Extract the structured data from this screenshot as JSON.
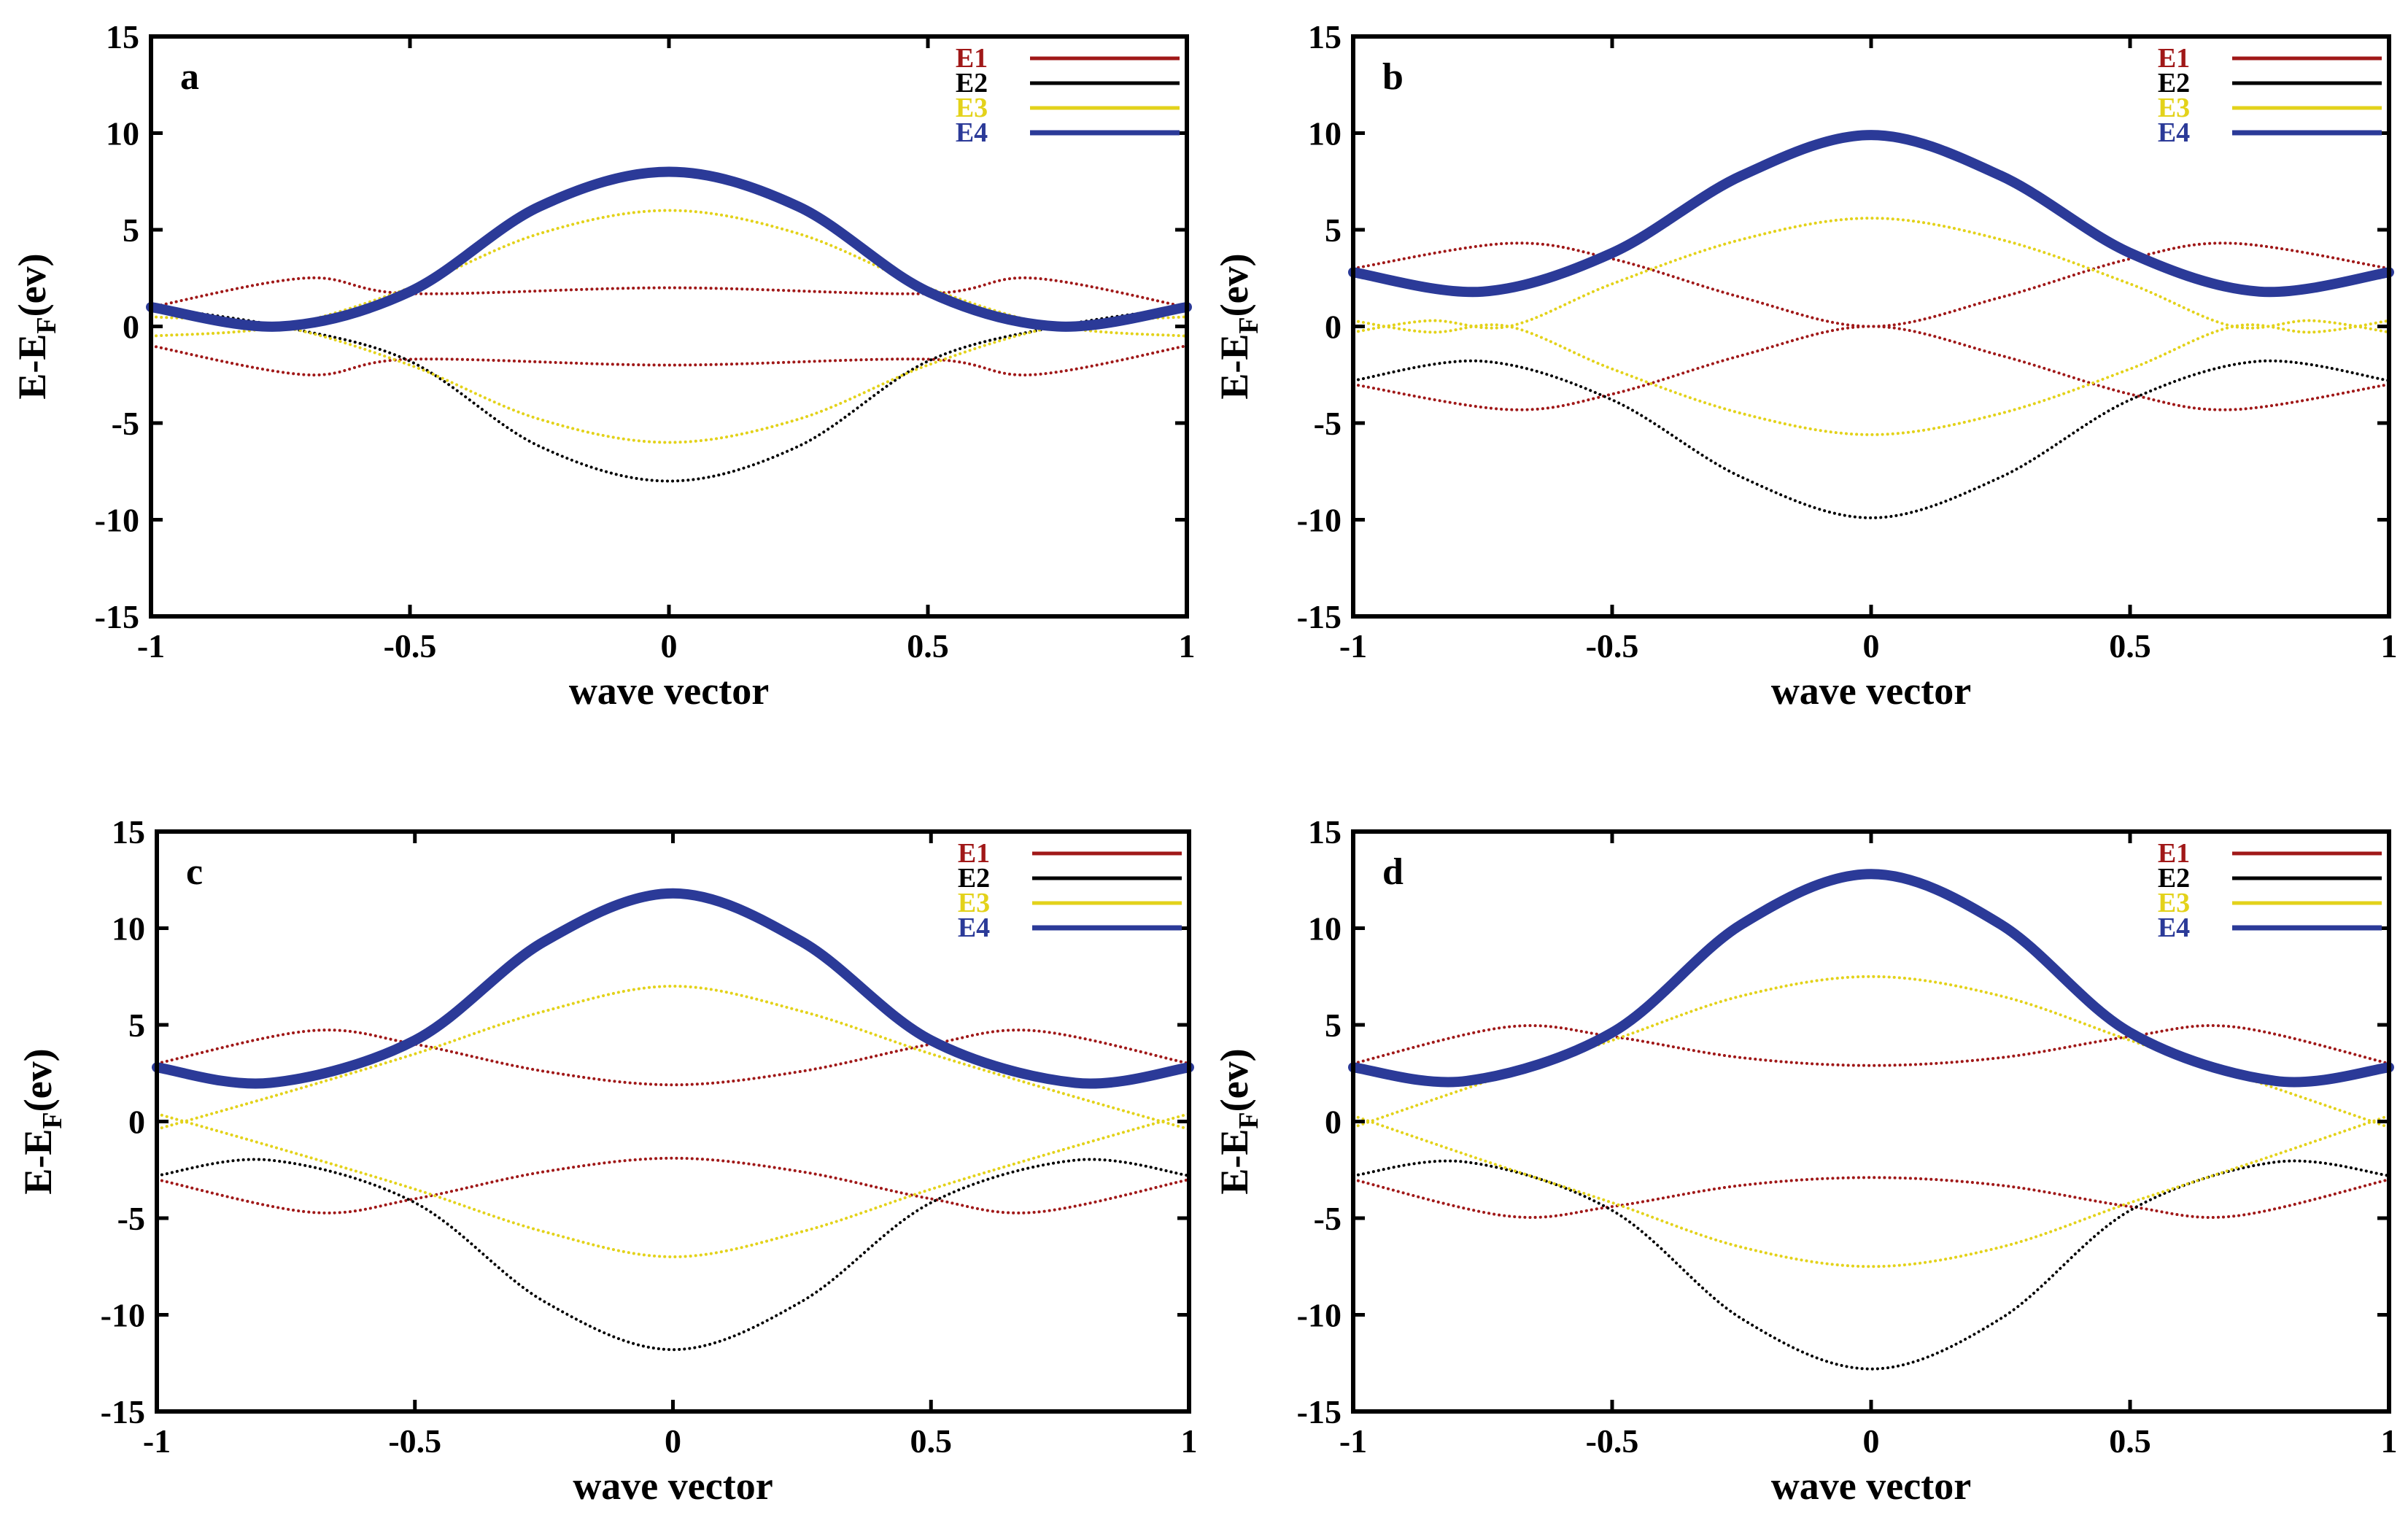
{
  "chart_data": [
    {
      "type": "line",
      "panel_label": "a",
      "xlabel": "wave vector",
      "ylabel_main": "E-E",
      "ylabel_sub": "F",
      "ylabel_tail": "(ev)",
      "xlim": [
        -1,
        1
      ],
      "ylim": [
        -15,
        15
      ],
      "xticks": [
        -1,
        -0.5,
        0,
        0.5,
        1
      ],
      "yticks": [
        -15,
        -10,
        -5,
        0,
        5,
        10,
        15
      ],
      "xtick_labels": [
        "-1",
        "-0.5",
        "0",
        "0.5",
        "1"
      ],
      "ytick_labels": [
        "-15",
        "-10",
        "-5",
        "0",
        "5",
        "10",
        "15"
      ],
      "legend": [
        "E1",
        "E2",
        "E3",
        "E4"
      ],
      "series": [
        {
          "name": "E1",
          "color": "#a01818",
          "style": "dotted",
          "x": [
            -1,
            -0.7,
            -0.5,
            0,
            0.5,
            0.7,
            1
          ],
          "y": [
            1.0,
            2.5,
            1.7,
            2.0,
            1.7,
            2.5,
            1.0
          ]
        },
        {
          "name": "E1",
          "color": "#a01818",
          "style": "dotted",
          "x": [
            -1,
            -0.7,
            -0.5,
            0,
            0.5,
            0.7,
            1
          ],
          "y": [
            -1.0,
            -2.5,
            -1.7,
            -2.0,
            -1.7,
            -2.5,
            -1.0
          ]
        },
        {
          "name": "E2",
          "color": "#000000",
          "style": "dotted",
          "x": [
            -1,
            -0.75,
            -0.5,
            -0.25,
            0,
            0.25,
            0.5,
            0.75,
            1
          ],
          "y": [
            1.0,
            0.0,
            -1.8,
            -6.2,
            -8.0,
            -6.2,
            -1.8,
            0.0,
            1.0
          ]
        },
        {
          "name": "E3",
          "color": "#e3d21a",
          "style": "dotted",
          "x": [
            -1,
            -0.75,
            -0.5,
            -0.25,
            0,
            0.25,
            0.5,
            0.75,
            1
          ],
          "y": [
            -0.5,
            0.0,
            2.0,
            4.8,
            6.0,
            4.8,
            2.0,
            0.0,
            -0.5
          ]
        },
        {
          "name": "E3",
          "color": "#e3d21a",
          "style": "dotted",
          "x": [
            -1,
            -0.75,
            -0.5,
            -0.25,
            0,
            0.25,
            0.5,
            0.75,
            1
          ],
          "y": [
            0.5,
            0.0,
            -2.0,
            -4.8,
            -6.0,
            -4.8,
            -2.0,
            0.0,
            0.5
          ]
        },
        {
          "name": "E4",
          "color": "#2b3a98",
          "style": "solid",
          "x": [
            -1,
            -0.75,
            -0.5,
            -0.25,
            0,
            0.25,
            0.5,
            0.75,
            1
          ],
          "y": [
            1.0,
            0.0,
            1.8,
            6.2,
            8.0,
            6.2,
            1.8,
            0.0,
            1.0
          ]
        }
      ]
    },
    {
      "type": "line",
      "panel_label": "b",
      "xlabel": "wave vector",
      "ylabel_main": "E-E",
      "ylabel_sub": "F",
      "ylabel_tail": "(ev)",
      "xlim": [
        -1,
        1
      ],
      "ylim": [
        -15,
        15
      ],
      "xticks": [
        -1,
        -0.5,
        0,
        0.5,
        1
      ],
      "yticks": [
        -15,
        -10,
        -5,
        0,
        5,
        10,
        15
      ],
      "xtick_labels": [
        "-1",
        "-0.5",
        "0",
        "0.5",
        "1"
      ],
      "ytick_labels": [
        "-15",
        "-10",
        "-5",
        "0",
        "5",
        "10",
        "15"
      ],
      "legend": [
        "E1",
        "E2",
        "E3",
        "E4"
      ],
      "series": [
        {
          "name": "E1",
          "color": "#a01818",
          "style": "dotted",
          "x": [
            -1,
            -0.7,
            -0.5,
            -0.25,
            0,
            0.25,
            0.5,
            0.7,
            1
          ],
          "y": [
            3.0,
            4.3,
            3.5,
            1.5,
            0.0,
            1.5,
            3.5,
            4.3,
            3.0
          ]
        },
        {
          "name": "E1",
          "color": "#a01818",
          "style": "dotted",
          "x": [
            -1,
            -0.7,
            -0.5,
            -0.25,
            0,
            0.25,
            0.5,
            0.7,
            1
          ],
          "y": [
            -3.0,
            -4.3,
            -3.5,
            -1.5,
            0.0,
            -1.5,
            -3.5,
            -4.3,
            -3.0
          ]
        },
        {
          "name": "E2",
          "color": "#000000",
          "style": "dotted",
          "x": [
            -1,
            -0.75,
            -0.5,
            -0.25,
            0,
            0.25,
            0.5,
            0.75,
            1
          ],
          "y": [
            -2.8,
            -1.8,
            -3.8,
            -7.8,
            -9.9,
            -7.8,
            -3.8,
            -1.8,
            -2.8
          ]
        },
        {
          "name": "E3",
          "color": "#e3d21a",
          "style": "dotted",
          "x": [
            -1,
            -0.85,
            -0.7,
            -0.5,
            -0.25,
            0,
            0.25,
            0.5,
            0.7,
            0.85,
            1
          ],
          "y": [
            -0.3,
            0.3,
            0.0,
            2.2,
            4.5,
            5.6,
            4.5,
            2.2,
            0.0,
            0.3,
            -0.3
          ]
        },
        {
          "name": "E3",
          "color": "#e3d21a",
          "style": "dotted",
          "x": [
            -1,
            -0.85,
            -0.7,
            -0.5,
            -0.25,
            0,
            0.25,
            0.5,
            0.7,
            0.85,
            1
          ],
          "y": [
            0.3,
            -0.3,
            0.0,
            -2.2,
            -4.5,
            -5.6,
            -4.5,
            -2.2,
            0.0,
            -0.3,
            0.3
          ]
        },
        {
          "name": "E4",
          "color": "#2b3a98",
          "style": "solid",
          "x": [
            -1,
            -0.75,
            -0.5,
            -0.25,
            0,
            0.25,
            0.5,
            0.75,
            1
          ],
          "y": [
            2.8,
            1.8,
            3.8,
            7.8,
            9.9,
            7.8,
            3.8,
            1.8,
            2.8
          ]
        }
      ]
    },
    {
      "type": "line",
      "panel_label": "c",
      "xlabel": "wave vector",
      "ylabel_main": "E-E",
      "ylabel_sub": "F",
      "ylabel_tail": "(ev)",
      "xlim": [
        -1,
        1
      ],
      "ylim": [
        -15,
        15
      ],
      "xticks": [
        -1,
        -0.5,
        0,
        0.5,
        1
      ],
      "yticks": [
        -15,
        -10,
        -5,
        0,
        5,
        10,
        15
      ],
      "xtick_labels": [
        "-1",
        "-0.5",
        "0",
        "0.5",
        "1"
      ],
      "ytick_labels": [
        "-15",
        "-10",
        "-5",
        "0",
        "5",
        "10",
        "15"
      ],
      "legend": [
        "E1",
        "E2",
        "E3",
        "E4"
      ],
      "series": [
        {
          "name": "E1",
          "color": "#a01818",
          "style": "dotted",
          "x": [
            -1,
            -0.7,
            -0.5,
            -0.25,
            0,
            0.25,
            0.5,
            0.7,
            1
          ],
          "y": [
            3.0,
            4.7,
            4.0,
            2.6,
            1.9,
            2.6,
            4.0,
            4.7,
            3.0
          ]
        },
        {
          "name": "E1",
          "color": "#a01818",
          "style": "dotted",
          "x": [
            -1,
            -0.7,
            -0.5,
            -0.25,
            0,
            0.25,
            0.5,
            0.7,
            1
          ],
          "y": [
            -3.0,
            -4.7,
            -4.0,
            -2.6,
            -1.9,
            -2.6,
            -4.0,
            -4.7,
            -3.0
          ]
        },
        {
          "name": "E2",
          "color": "#000000",
          "style": "dotted",
          "x": [
            -1,
            -0.78,
            -0.5,
            -0.25,
            0,
            0.25,
            0.5,
            0.78,
            1
          ],
          "y": [
            -2.8,
            -2.0,
            -4.2,
            -9.3,
            -11.8,
            -9.3,
            -4.2,
            -2.0,
            -2.8
          ]
        },
        {
          "name": "E3",
          "color": "#e3d21a",
          "style": "dotted",
          "x": [
            -1,
            -0.75,
            -0.5,
            -0.25,
            0,
            0.25,
            0.5,
            0.75,
            1
          ],
          "y": [
            -0.4,
            1.5,
            3.5,
            5.7,
            7.0,
            5.7,
            3.5,
            1.5,
            -0.4
          ]
        },
        {
          "name": "E3",
          "color": "#e3d21a",
          "style": "dotted",
          "x": [
            -1,
            -0.75,
            -0.5,
            -0.25,
            0,
            0.25,
            0.5,
            0.75,
            1
          ],
          "y": [
            0.4,
            -1.5,
            -3.5,
            -5.7,
            -7.0,
            -5.7,
            -3.5,
            -1.5,
            0.4
          ]
        },
        {
          "name": "E4",
          "color": "#2b3a98",
          "style": "solid",
          "x": [
            -1,
            -0.78,
            -0.5,
            -0.25,
            0,
            0.25,
            0.5,
            0.78,
            1
          ],
          "y": [
            2.8,
            2.0,
            4.2,
            9.3,
            11.8,
            9.3,
            4.2,
            2.0,
            2.8
          ]
        }
      ]
    },
    {
      "type": "line",
      "panel_label": "d",
      "xlabel": "wave vector",
      "ylabel_main": "E-E",
      "ylabel_sub": "F",
      "ylabel_tail": "(ev)",
      "xlim": [
        -1,
        1
      ],
      "ylim": [
        -15,
        15
      ],
      "xticks": [
        -1,
        -0.5,
        0,
        0.5,
        1
      ],
      "yticks": [
        -15,
        -10,
        -5,
        0,
        5,
        10,
        15
      ],
      "xtick_labels": [
        "-1",
        "-0.5",
        "0",
        "0.5",
        "1"
      ],
      "ytick_labels": [
        "-15",
        "-10",
        "-5",
        "0",
        "5",
        "10",
        "15"
      ],
      "legend": [
        "E1",
        "E2",
        "E3",
        "E4"
      ],
      "series": [
        {
          "name": "E1",
          "color": "#a01818",
          "style": "dotted",
          "x": [
            -1,
            -0.7,
            -0.5,
            -0.25,
            0,
            0.25,
            0.5,
            0.7,
            1
          ],
          "y": [
            3.0,
            4.9,
            4.4,
            3.3,
            2.9,
            3.3,
            4.4,
            4.9,
            3.0
          ]
        },
        {
          "name": "E1",
          "color": "#a01818",
          "style": "dotted",
          "x": [
            -1,
            -0.7,
            -0.5,
            -0.25,
            0,
            0.25,
            0.5,
            0.7,
            1
          ],
          "y": [
            -3.0,
            -4.9,
            -4.4,
            -3.3,
            -2.9,
            -3.3,
            -4.4,
            -4.9,
            -3.0
          ]
        },
        {
          "name": "E2",
          "color": "#000000",
          "style": "dotted",
          "x": [
            -1,
            -0.78,
            -0.5,
            -0.25,
            0,
            0.25,
            0.5,
            0.78,
            1
          ],
          "y": [
            -2.8,
            -2.1,
            -4.6,
            -10.2,
            -12.8,
            -10.2,
            -4.6,
            -2.1,
            -2.8
          ]
        },
        {
          "name": "E3",
          "color": "#e3d21a",
          "style": "dotted",
          "x": [
            -1,
            -0.75,
            -0.5,
            -0.25,
            0,
            0.25,
            0.5,
            0.75,
            1
          ],
          "y": [
            -0.3,
            2.0,
            4.2,
            6.5,
            7.5,
            6.5,
            4.2,
            2.0,
            -0.3
          ]
        },
        {
          "name": "E3",
          "color": "#e3d21a",
          "style": "dotted",
          "x": [
            -1,
            -0.75,
            -0.5,
            -0.25,
            0,
            0.25,
            0.5,
            0.75,
            1
          ],
          "y": [
            0.3,
            -2.0,
            -4.2,
            -6.5,
            -7.5,
            -6.5,
            -4.2,
            -2.0,
            0.3
          ]
        },
        {
          "name": "E4",
          "color": "#2b3a98",
          "style": "solid",
          "x": [
            -1,
            -0.78,
            -0.5,
            -0.25,
            0,
            0.25,
            0.5,
            0.78,
            1
          ],
          "y": [
            2.8,
            2.1,
            4.6,
            10.2,
            12.8,
            10.2,
            4.6,
            2.1,
            2.8
          ]
        }
      ]
    }
  ]
}
